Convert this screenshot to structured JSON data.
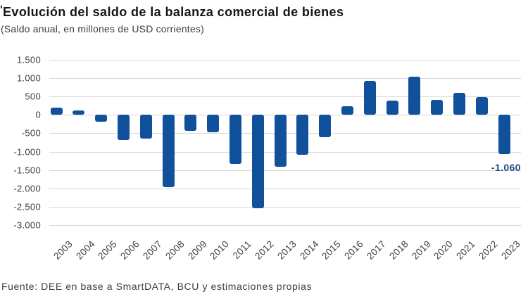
{
  "crop_mark": "'",
  "title": "Evolución del saldo de la balanza comercial de bienes",
  "subtitle": "(Saldo anual, en millones de USD corrientes)",
  "source": "Fuente: DEE en base a SmartDATA, BCU y estimaciones propias",
  "colors": {
    "bar": "#11509B",
    "grid": "#D8D8D8",
    "axis_text": "#3E3E3E",
    "title_text": "#161616",
    "subtitle_text": "#3E3E3E",
    "annotation_text": "#1B4A85",
    "background": "#FFFFFF"
  },
  "chart_data": {
    "type": "bar",
    "title": "Evolución del saldo de la balanza comercial de bienes",
    "subtitle": "(Saldo anual, en millones de USD corrientes)",
    "xlabel": "",
    "ylabel": "",
    "categories": [
      "2003",
      "2004",
      "2005",
      "2006",
      "2007",
      "2008",
      "2009",
      "2010",
      "2011",
      "2012",
      "2013",
      "2014",
      "2015",
      "2016",
      "2017",
      "2018",
      "2019",
      "2020",
      "2021",
      "2022",
      "2023"
    ],
    "values": [
      190,
      120,
      -190,
      -680,
      -650,
      -1970,
      -430,
      -470,
      -1340,
      -2550,
      -1420,
      -1080,
      -610,
      240,
      920,
      380,
      1050,
      410,
      600,
      480,
      -1060
    ],
    "ylim": [
      -3000,
      1500
    ],
    "ytick_step": 500,
    "ytick_labels": [
      "1.500",
      "1.000",
      "500",
      "0",
      "-500",
      "-1.000",
      "-1.500",
      "-2.000",
      "-2.500",
      "-3.000"
    ],
    "grid": "horizontal",
    "legend": "none",
    "bar_color": "#11509B",
    "annotations": [
      {
        "category": "2023",
        "text": "-1.060"
      }
    ]
  }
}
